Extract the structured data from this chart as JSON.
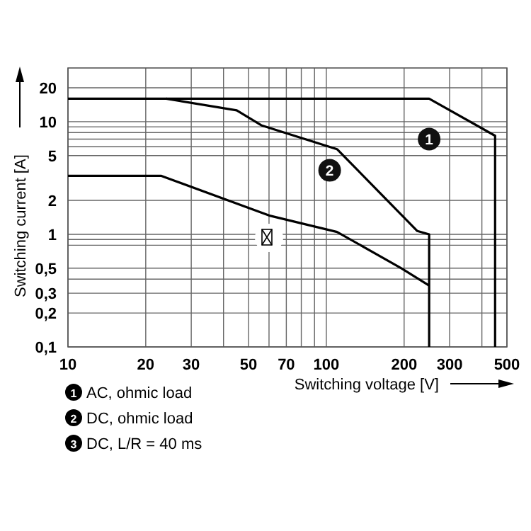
{
  "chart_data": {
    "type": "line",
    "xlabel": "Switching voltage [V]",
    "ylabel": "Switching current [A]",
    "log": "xy",
    "xlim": [
      10,
      500
    ],
    "ylim": [
      0.1,
      30
    ],
    "xticks": [
      10,
      20,
      30,
      {
        "value": 40,
        "label": null
      },
      50,
      {
        "value": 60,
        "label": null
      },
      70,
      {
        "value": 80,
        "label": null
      },
      {
        "value": 90,
        "label": null
      },
      100,
      200,
      300,
      {
        "value": 400,
        "label": null
      },
      500
    ],
    "yticks": [
      {
        "value": 0.1,
        "label": "0,1"
      },
      {
        "value": 0.2,
        "label": "0,2"
      },
      {
        "value": 0.3,
        "label": "0,3"
      },
      {
        "value": 0.4,
        "label": null
      },
      {
        "value": 0.5,
        "label": "0,5"
      },
      {
        "value": 0.8,
        "label": null
      },
      {
        "value": 0.9,
        "label": null
      },
      1,
      2,
      5,
      {
        "value": 6,
        "label": null
      },
      {
        "value": 7,
        "label": null
      },
      {
        "value": 8,
        "label": null
      },
      {
        "value": 9,
        "label": null
      },
      10,
      20
    ],
    "grid": true,
    "legend": "bottom left",
    "line_style": "solid",
    "series": [
      {
        "name": "AC, ohmic load",
        "color": "#000000",
        "x": [
          10,
          250,
          450,
          450
        ],
        "values": [
          16,
          16,
          7.5,
          0.1
        ]
      },
      {
        "name": "DC, ohmic load",
        "color": "#000000",
        "x": [
          24,
          45,
          56,
          110,
          225,
          250,
          250
        ],
        "values": [
          16,
          12.6,
          9.3,
          5.7,
          1.07,
          1.0,
          0.1
        ]
      },
      {
        "name": "DC, L/R = 40 ms",
        "color": "#000000",
        "x": [
          10,
          23,
          60,
          110,
          195,
          250
        ],
        "values": [
          3.3,
          3.3,
          1.47,
          1.05,
          0.5,
          0.35
        ]
      }
    ],
    "annotations": [
      {
        "text": "1",
        "x": 250,
        "y": 7
      },
      {
        "text": "2",
        "x": 103,
        "y": 3.7
      },
      "3"
    ]
  }
}
